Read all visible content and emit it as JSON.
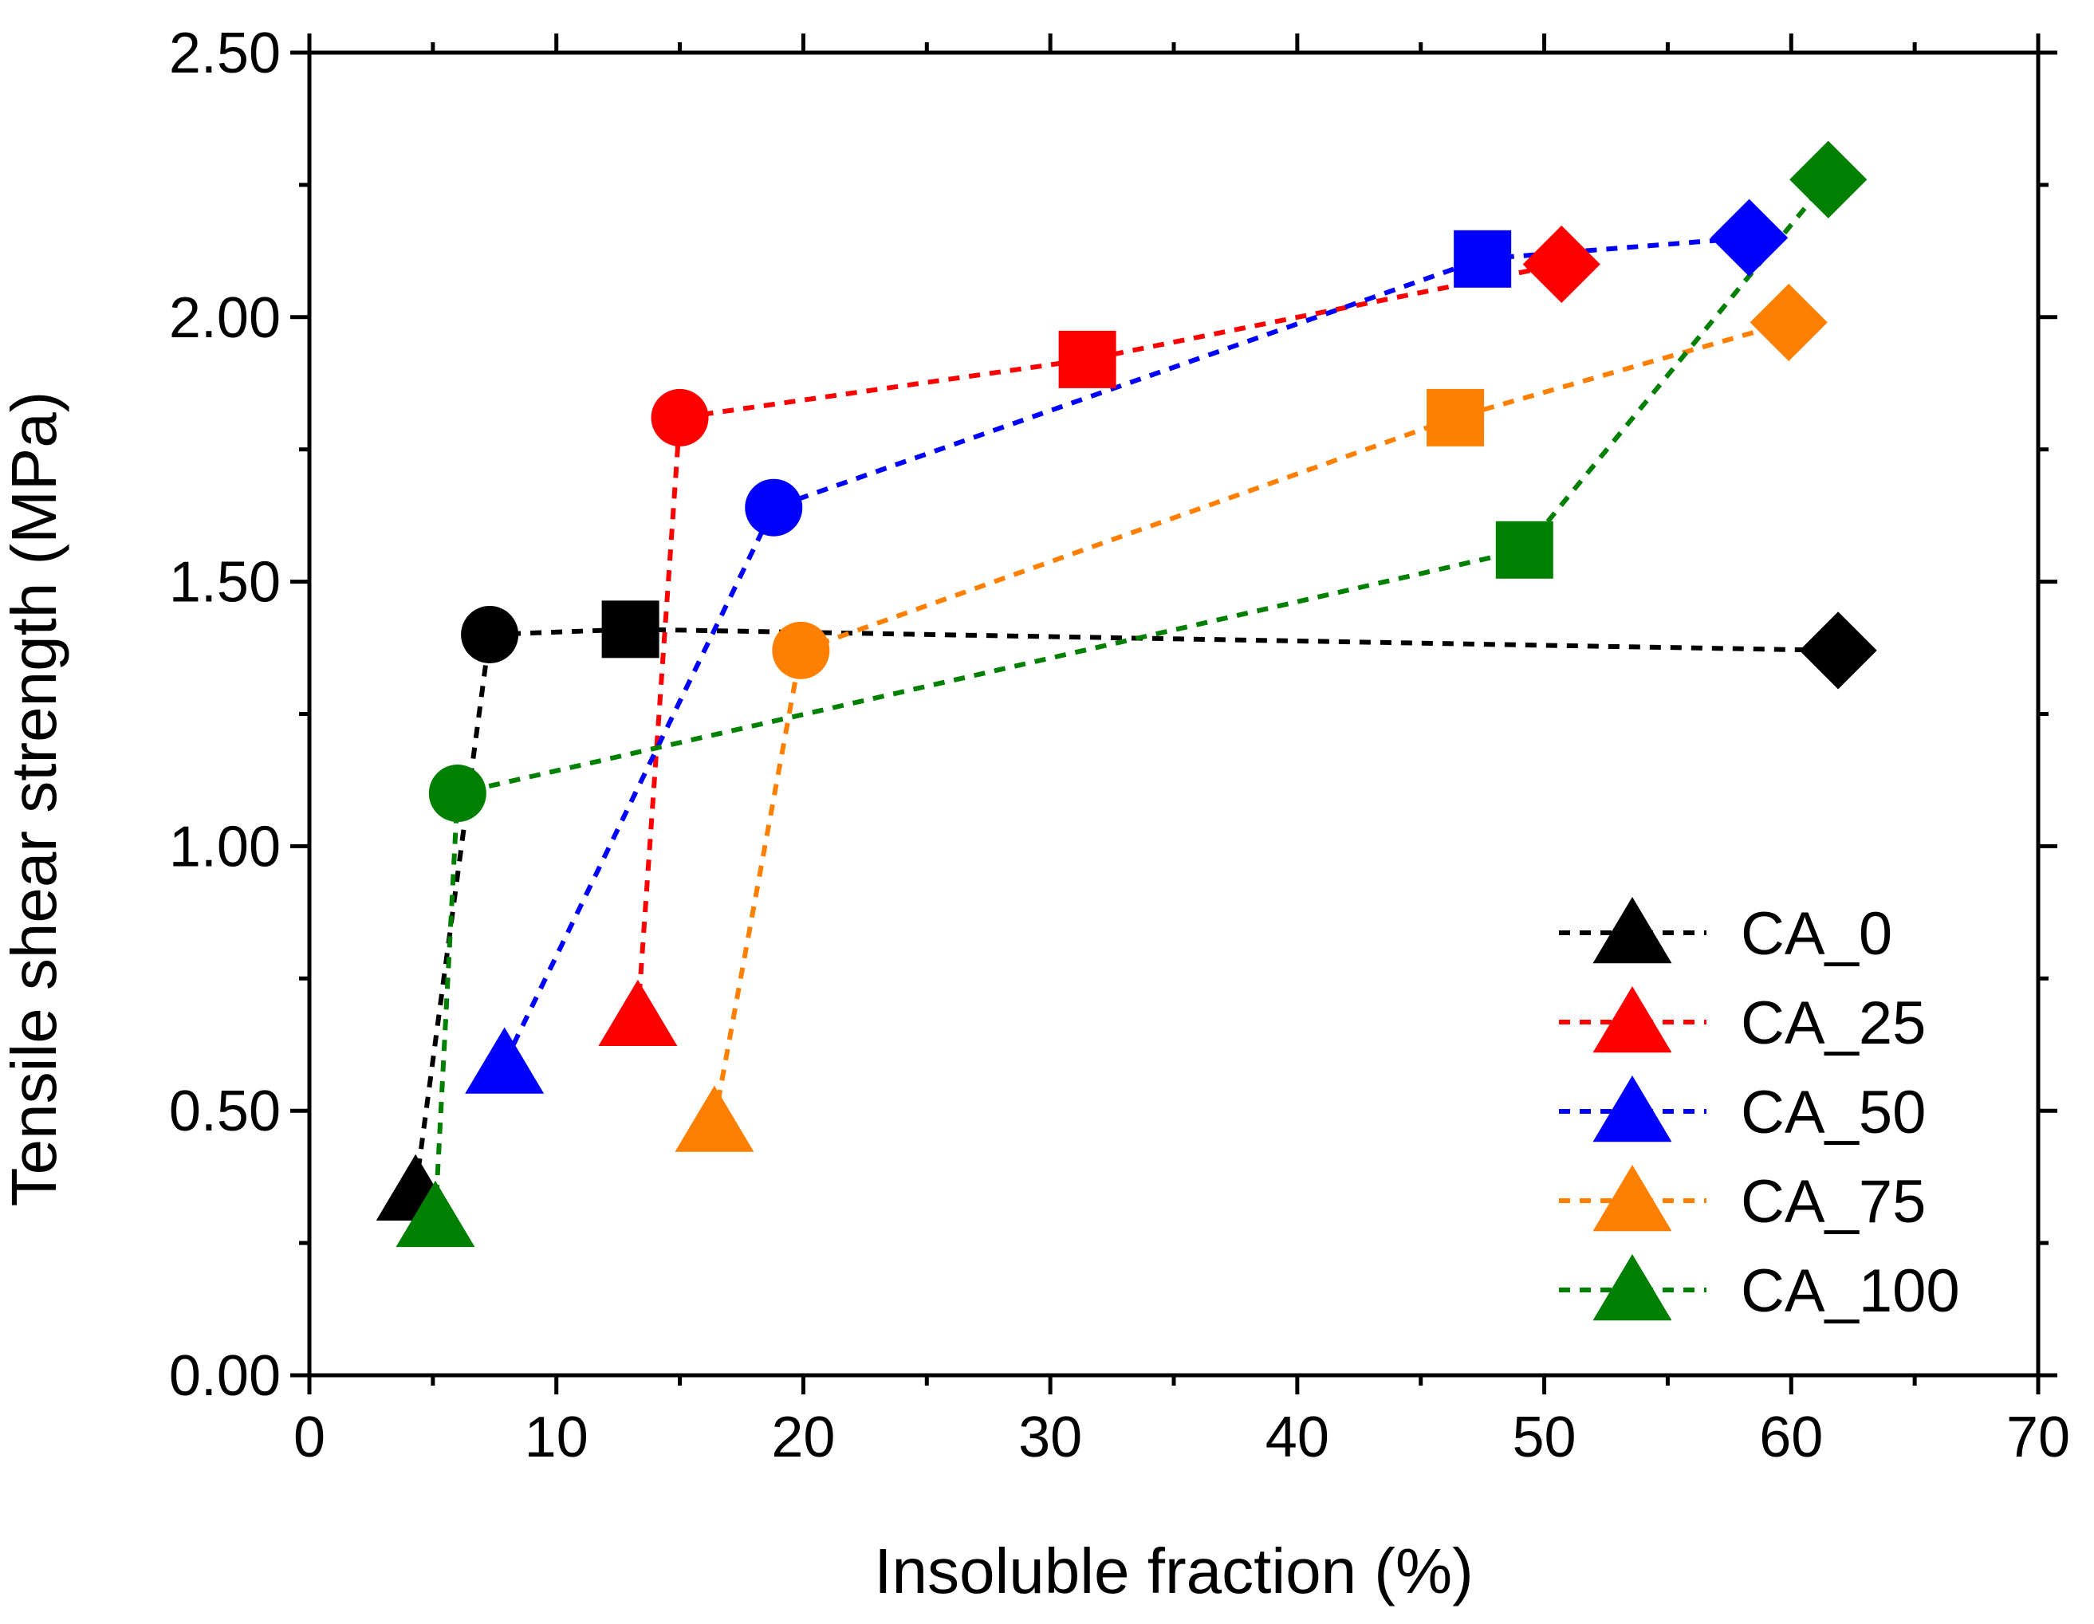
{
  "chart_data": {
    "type": "scatter",
    "title": "",
    "xlabel": "Insoluble fraction (%)",
    "ylabel": "Tensile shear strength (MPa)",
    "xlim": [
      0,
      70
    ],
    "ylim": [
      0,
      2.5
    ],
    "x_ticks": [
      0,
      10,
      20,
      30,
      40,
      50,
      60,
      70
    ],
    "x_tick_labels": [
      "0",
      "10",
      "20",
      "30",
      "40",
      "50",
      "60",
      "70"
    ],
    "y_ticks": [
      0,
      0.5,
      1.0,
      1.5,
      2.0,
      2.5
    ],
    "y_tick_labels": [
      "0.00",
      "0.50",
      "1.00",
      "1.50",
      "2.00",
      "2.50"
    ],
    "grid": false,
    "legend_position": "bottom-right",
    "marker_order": [
      "triangle",
      "circle",
      "square",
      "diamond"
    ],
    "series": [
      {
        "name": "CA_0",
        "color": "#000000",
        "points": [
          [
            4.3,
            0.35
          ],
          [
            7.3,
            1.4
          ],
          [
            13.0,
            1.41
          ],
          [
            61.9,
            1.37
          ]
        ]
      },
      {
        "name": "CA_25",
        "color": "#ff0000",
        "points": [
          [
            13.3,
            0.68
          ],
          [
            15.0,
            1.81
          ],
          [
            31.5,
            1.92
          ],
          [
            50.7,
            2.1
          ]
        ]
      },
      {
        "name": "CA_50",
        "color": "#0000ff",
        "points": [
          [
            7.9,
            0.59
          ],
          [
            18.8,
            1.64
          ],
          [
            47.5,
            2.11
          ],
          [
            58.3,
            2.15
          ]
        ]
      },
      {
        "name": "CA_75",
        "color": "#ff8000",
        "points": [
          [
            16.4,
            0.48
          ],
          [
            19.9,
            1.37
          ],
          [
            46.4,
            1.81
          ],
          [
            59.9,
            1.99
          ]
        ]
      },
      {
        "name": "CA_100",
        "color": "#008000",
        "points": [
          [
            5.1,
            0.3
          ],
          [
            6.0,
            1.1
          ],
          [
            49.2,
            1.56
          ],
          [
            61.5,
            2.26
          ]
        ]
      }
    ]
  }
}
